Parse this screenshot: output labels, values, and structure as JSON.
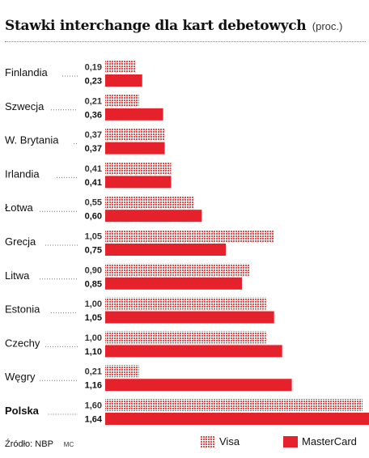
{
  "header": {
    "title": "Stawki interchange dla kart debetowych",
    "unit": "(proc.)"
  },
  "footer": {
    "source": "Źródło: NBP",
    "credit": "MC"
  },
  "colors": {
    "visa": "#e74c4c",
    "mastercard": "#e5212b",
    "text": "#111111"
  },
  "chart_data": {
    "type": "bar",
    "orientation": "horizontal",
    "categories": [
      "Finlandia",
      "Szwecja",
      "W. Brytania",
      "Irlandia",
      "Łotwa",
      "Grecja",
      "Litwa",
      "Estonia",
      "Czechy",
      "Węgry",
      "Polska"
    ],
    "highlight_category": "Polska",
    "series": [
      {
        "name": "Visa",
        "pattern": "dotted",
        "values": [
          0.19,
          0.21,
          0.37,
          0.41,
          0.55,
          1.05,
          0.9,
          1.0,
          1.0,
          0.21,
          1.6
        ],
        "labels": [
          "0,19",
          "0,21",
          "0,37",
          "0,41",
          "0,55",
          "1,05",
          "0,90",
          "1,00",
          "1,00",
          "0,21",
          "1,60"
        ]
      },
      {
        "name": "MasterCard",
        "pattern": "solid",
        "values": [
          0.23,
          0.36,
          0.37,
          0.41,
          0.6,
          0.75,
          0.85,
          1.05,
          1.1,
          1.16,
          1.64
        ],
        "labels": [
          "0,23",
          "0,36",
          "0,37",
          "0,41",
          "0,60",
          "0,75",
          "0,85",
          "1,05",
          "1,10",
          "1,16",
          "1,64"
        ]
      }
    ],
    "legend_position": "bottom-right",
    "grid": false
  }
}
